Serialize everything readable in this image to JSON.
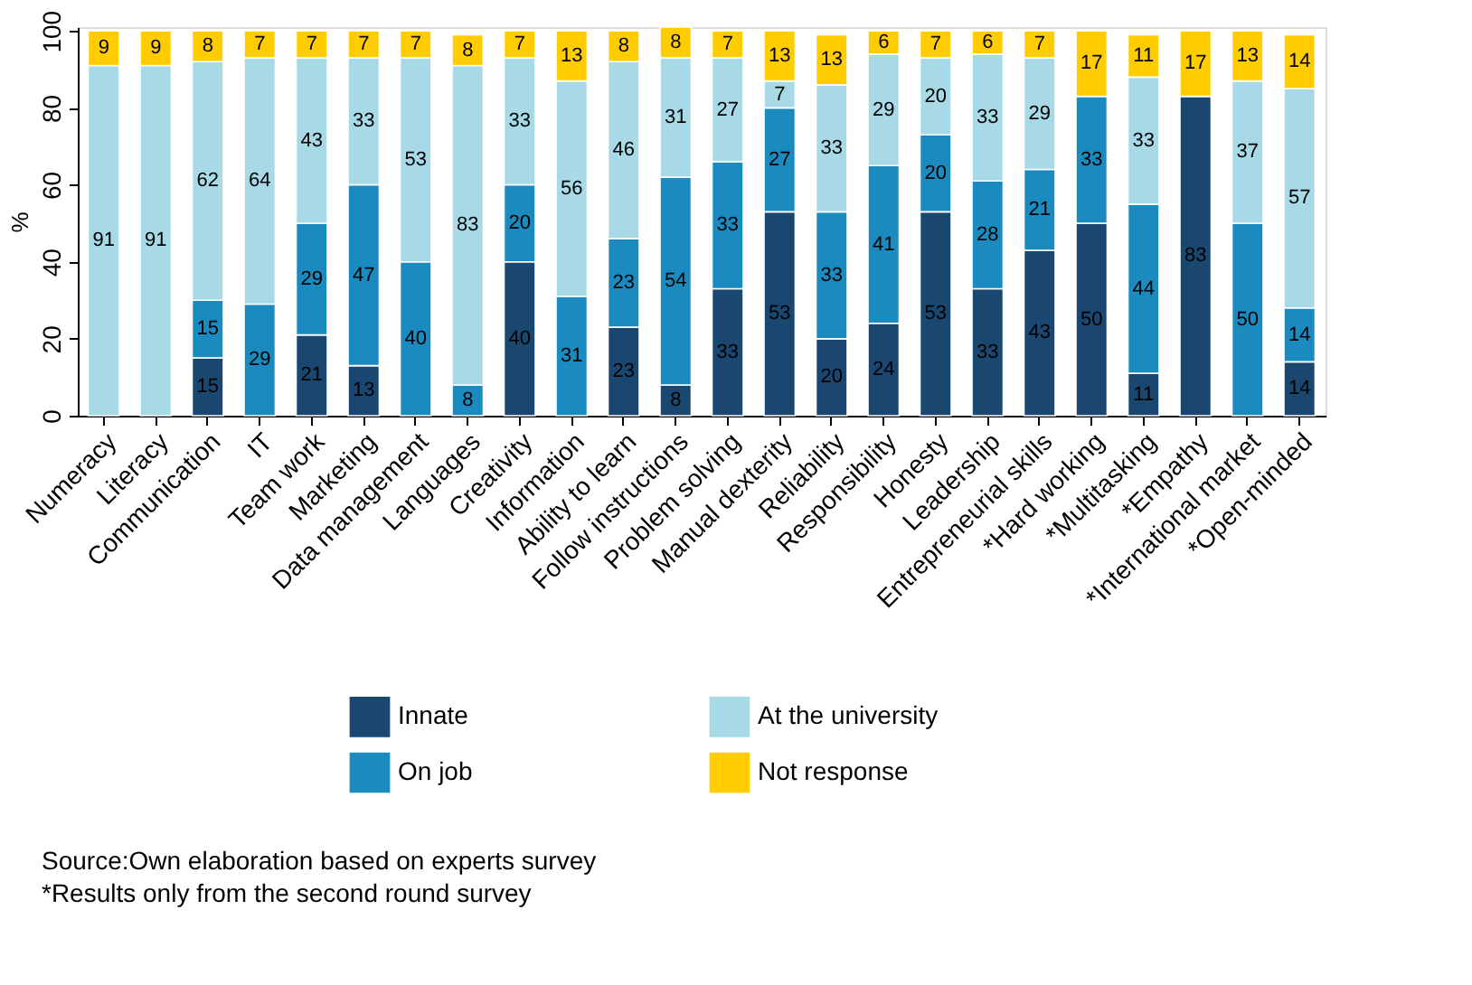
{
  "chart_data": {
    "type": "bar",
    "stacked": true,
    "ylabel": "%",
    "categories": [
      "Numeracy",
      "Literacy",
      "Communication",
      "IT",
      "Team work",
      "Marketing",
      "Data management",
      "Languages",
      "Creativity",
      "Information",
      "Ability to learn",
      "Follow instructions",
      "Problem solving",
      "Manual dexterity",
      "Reliability",
      "Responsibility",
      "Honesty",
      "Leadership",
      "Entrepreneurial skills",
      "*Hard working",
      "*Multitasking",
      "*Empathy",
      "*International market",
      "*Open-minded"
    ],
    "series": [
      {
        "name": "Innate",
        "color": "#1a476f",
        "values": [
          null,
          null,
          15,
          null,
          21,
          13,
          null,
          null,
          40,
          null,
          23,
          8,
          33,
          53,
          20,
          24,
          53,
          33,
          43,
          50,
          11,
          83,
          null,
          14
        ],
        "value_labels": [
          null,
          null,
          "15",
          null,
          "21",
          "13",
          null,
          null,
          "40",
          null,
          "23",
          "8",
          "33",
          "53",
          "20",
          "24",
          "53",
          "33",
          "43",
          "50",
          "11",
          "83",
          null,
          "14"
        ]
      },
      {
        "name": "On job",
        "color": "#1b8bbf",
        "values": [
          null,
          null,
          15,
          29,
          29,
          47,
          40,
          8,
          20,
          31,
          23,
          54,
          33,
          27,
          33,
          41,
          20,
          28,
          21,
          33,
          44,
          null,
          50,
          14
        ],
        "value_labels": [
          null,
          null,
          "15",
          "29",
          "29",
          "47",
          "40",
          "8",
          "20",
          "31",
          "23",
          "54",
          "33",
          "27",
          "33",
          "41",
          "20",
          "28",
          "21",
          "33",
          "44",
          null,
          "50",
          "14"
        ]
      },
      {
        "name": "At the university",
        "color": "#a7d9e6",
        "values": [
          91,
          91,
          62,
          64,
          43,
          33,
          53,
          83,
          33,
          56,
          46,
          31,
          27,
          7,
          33,
          29,
          20,
          33,
          29,
          null,
          33,
          null,
          37,
          57
        ],
        "value_labels": [
          "91",
          "91",
          "62",
          "64",
          "43",
          "33",
          "53",
          "83",
          "33",
          "56",
          "46",
          "31",
          "27",
          "7",
          "33",
          "29",
          "20",
          "33",
          "29",
          null,
          "33",
          null,
          "37",
          "57"
        ]
      },
      {
        "name": "Not response",
        "color": "#ffcc00",
        "values": [
          9,
          9,
          8,
          7,
          7,
          7,
          7,
          8,
          7,
          13,
          8,
          8,
          7,
          13,
          13,
          6,
          7,
          6,
          7,
          17,
          11,
          17,
          13,
          14
        ],
        "value_labels": [
          "9",
          "9",
          "8",
          "7",
          "7",
          "7",
          "7",
          "8",
          "7",
          "13",
          "8",
          "8",
          "7",
          "13",
          "13",
          "6",
          "7",
          "6",
          "7",
          "17",
          "11",
          "17",
          "13",
          "14"
        ]
      }
    ],
    "ylim": [
      0,
      101
    ],
    "yticks": [
      0,
      20,
      40,
      60,
      80,
      100
    ],
    "grid": false,
    "legend": "bottom",
    "annotations": [
      "Source:Own elaboration based on experts survey",
      "*Results only from the second round survey"
    ]
  }
}
